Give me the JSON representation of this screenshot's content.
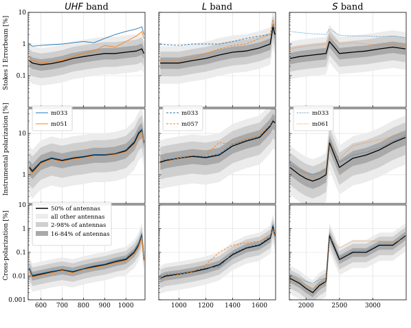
{
  "chart_data": {
    "type": "line",
    "log_y": true,
    "grid": true,
    "columns": [
      {
        "band_name": "UHF",
        "band_suffix": "band",
        "xlim": [
          540,
          1090
        ],
        "xticks": [
          600,
          700,
          800,
          900,
          1000
        ],
        "xtick_labels": [
          "600",
          "700",
          "800",
          "900",
          "1000"
        ]
      },
      {
        "band_name": "L",
        "band_suffix": "band",
        "xlim": [
          850,
          1720
        ],
        "xticks": [
          1000,
          1200,
          1400,
          1600
        ],
        "xtick_labels": [
          "1000",
          "1200",
          "1400",
          "1600"
        ]
      },
      {
        "band_name": "S",
        "band_suffix": "band",
        "xlim": [
          1750,
          3500
        ],
        "xticks": [
          2000,
          2500,
          3000
        ],
        "xtick_labels": [
          "2000",
          "2500",
          "3000"
        ]
      }
    ],
    "rows": [
      {
        "ylabel": "Stokes I Errorbeam [%]",
        "ylim": [
          0.01,
          10
        ],
        "yticks": [
          0.1,
          1,
          10
        ],
        "ytick_labels": [
          "0.1",
          "1",
          "10"
        ]
      },
      {
        "ylabel": "Instrumental polarization [%]",
        "ylim": [
          0.2,
          40
        ],
        "yticks": [
          1,
          10
        ],
        "ytick_labels": [
          "1",
          "10"
        ]
      },
      {
        "ylabel": "Cross-polarization [%]",
        "ylim": [
          0.001,
          10
        ],
        "yticks": [
          0.001,
          0.01,
          0.1,
          1,
          10
        ],
        "ytick_labels": [
          "0.001",
          "0.01",
          "0.1",
          "1",
          "10"
        ]
      }
    ],
    "legends": {
      "uhf": [
        {
          "name": "m033",
          "color": "#1f77b4",
          "style": "solid"
        },
        {
          "name": "m051",
          "color": "#ff7f0e",
          "style": "solid"
        }
      ],
      "l": [
        {
          "name": "m033",
          "color": "#1f77b4",
          "style": "dashed"
        },
        {
          "name": "m057",
          "color": "#ff7f0e",
          "style": "dashed"
        }
      ],
      "s": [
        {
          "name": "m033",
          "color": "#1f77b4",
          "style": "dotted"
        },
        {
          "name": "m061",
          "color": "#ff7f0e",
          "style": "dotted"
        }
      ],
      "envelope": [
        {
          "name": "50% of antennas",
          "kind": "line",
          "color": "#000000"
        },
        {
          "name": "all other antennas",
          "kind": "band",
          "color": "#ececec"
        },
        {
          "name": "2-98% of antennas",
          "kind": "band",
          "color": "#cfcfcf"
        },
        {
          "name": "16-84% of antennas",
          "kind": "band",
          "color": "#a9a9a9"
        }
      ]
    },
    "colors": {
      "antenna_a": "#1f77b4",
      "antenna_b": "#ff7f0e",
      "median": "#000000",
      "band_all": "#ececec",
      "band_2_98": "#cfcfcf",
      "band_16_84": "#a9a9a9"
    },
    "series": [
      {
        "row": 0,
        "col": 0,
        "name": "median",
        "x": [
          545,
          560,
          600,
          650,
          700,
          750,
          800,
          850,
          900,
          950,
          1000,
          1050,
          1075,
          1085
        ],
        "y": [
          0.3,
          0.25,
          0.22,
          0.24,
          0.28,
          0.35,
          0.4,
          0.45,
          0.5,
          0.5,
          0.55,
          0.6,
          0.7,
          0.5
        ]
      },
      {
        "row": 0,
        "col": 0,
        "name": "m033",
        "x": [
          545,
          560,
          600,
          650,
          700,
          750,
          800,
          850,
          900,
          950,
          1000,
          1050,
          1075,
          1085
        ],
        "y": [
          1.0,
          0.85,
          0.9,
          0.95,
          1.0,
          1.1,
          1.2,
          1.1,
          1.5,
          2.0,
          2.5,
          3.0,
          3.5,
          2.0
        ]
      },
      {
        "row": 0,
        "col": 0,
        "name": "m051",
        "x": [
          545,
          560,
          600,
          650,
          700,
          750,
          800,
          850,
          900,
          950,
          1000,
          1050,
          1075,
          1085
        ],
        "y": [
          0.4,
          0.3,
          0.25,
          0.28,
          0.3,
          0.4,
          0.5,
          0.6,
          0.9,
          0.8,
          1.2,
          1.8,
          2.5,
          1.5
        ]
      },
      {
        "row": 0,
        "col": 1,
        "name": "median",
        "x": [
          860,
          900,
          1000,
          1100,
          1200,
          1300,
          1400,
          1500,
          1600,
          1680,
          1700,
          1715
        ],
        "y": [
          0.25,
          0.25,
          0.25,
          0.3,
          0.35,
          0.45,
          0.55,
          0.6,
          0.75,
          1.0,
          3.5,
          2.0
        ]
      },
      {
        "row": 0,
        "col": 1,
        "name": "m033",
        "x": [
          860,
          900,
          1000,
          1100,
          1200,
          1300,
          1400,
          1500,
          1600,
          1680,
          1700,
          1715
        ],
        "y": [
          1.0,
          0.95,
          0.9,
          1.0,
          1.0,
          1.0,
          1.2,
          1.5,
          1.8,
          2.0,
          4.0,
          3.0
        ]
      },
      {
        "row": 0,
        "col": 1,
        "name": "m057",
        "x": [
          860,
          900,
          1000,
          1100,
          1200,
          1300,
          1400,
          1500,
          1600,
          1680,
          1700,
          1715
        ],
        "y": [
          0.3,
          0.28,
          0.3,
          0.35,
          0.5,
          0.7,
          0.9,
          1.0,
          1.5,
          2.0,
          6.0,
          3.0
        ]
      },
      {
        "row": 0,
        "col": 2,
        "name": "median",
        "x": [
          1760,
          1900,
          2100,
          2300,
          2350,
          2500,
          2700,
          2900,
          3100,
          3300,
          3490
        ],
        "y": [
          0.35,
          0.4,
          0.45,
          0.5,
          1.2,
          0.5,
          0.55,
          0.6,
          0.7,
          0.8,
          0.7
        ]
      },
      {
        "row": 0,
        "col": 2,
        "name": "m033",
        "x": [
          1760,
          1900,
          2100,
          2300,
          2350,
          2500,
          2700,
          2900,
          3100,
          3300,
          3490
        ],
        "y": [
          2.5,
          2.3,
          2.1,
          2.0,
          3.0,
          1.9,
          1.8,
          1.8,
          1.7,
          1.8,
          1.6
        ]
      },
      {
        "row": 0,
        "col": 2,
        "name": "m061",
        "x": [
          1760,
          1900,
          2100,
          2300,
          2350,
          2500,
          2700,
          2900,
          3100,
          3300,
          3490
        ],
        "y": [
          0.7,
          0.8,
          0.9,
          1.0,
          2.0,
          1.0,
          1.1,
          1.0,
          0.9,
          1.0,
          0.8
        ]
      },
      {
        "row": 1,
        "col": 0,
        "name": "median",
        "x": [
          545,
          560,
          600,
          650,
          700,
          750,
          800,
          850,
          900,
          950,
          1000,
          1040,
          1060,
          1075,
          1085
        ],
        "y": [
          1.5,
          1.2,
          2.0,
          2.5,
          2.2,
          2.5,
          2.7,
          3.0,
          3.0,
          3.2,
          3.8,
          6.0,
          10,
          12,
          6
        ]
      },
      {
        "row": 1,
        "col": 0,
        "name": "m033",
        "x": [
          545,
          560,
          600,
          650,
          700,
          750,
          800,
          850,
          900,
          950,
          1000,
          1040,
          1060,
          1075,
          1085
        ],
        "y": [
          1.6,
          1.3,
          2.1,
          2.6,
          2.3,
          2.6,
          2.8,
          3.1,
          3.1,
          3.3,
          4.0,
          6.5,
          11,
          13,
          6.5
        ]
      },
      {
        "row": 1,
        "col": 0,
        "name": "m051",
        "x": [
          545,
          560,
          600,
          650,
          700,
          750,
          800,
          850,
          900,
          950,
          1000,
          1040,
          1060,
          1075,
          1085
        ],
        "y": [
          1.4,
          1.1,
          1.9,
          2.4,
          2.1,
          2.4,
          2.6,
          2.9,
          2.9,
          3.1,
          3.6,
          5.5,
          9,
          11,
          5.5
        ]
      },
      {
        "row": 1,
        "col": 1,
        "name": "median",
        "x": [
          860,
          900,
          1000,
          1100,
          1200,
          1300,
          1400,
          1500,
          1600,
          1680,
          1700,
          1715
        ],
        "y": [
          2.0,
          2.2,
          2.5,
          2.8,
          2.6,
          3.0,
          5.0,
          6.5,
          8.0,
          15,
          20,
          18
        ]
      },
      {
        "row": 1,
        "col": 1,
        "name": "m033",
        "x": [
          860,
          900,
          1000,
          1100,
          1200,
          1300,
          1400,
          1500,
          1600,
          1680,
          1700,
          1715
        ],
        "y": [
          2.1,
          2.3,
          2.6,
          2.9,
          2.7,
          3.2,
          5.5,
          7.0,
          8.5,
          16,
          21,
          19
        ]
      },
      {
        "row": 1,
        "col": 1,
        "name": "m057",
        "x": [
          860,
          900,
          1000,
          1100,
          1200,
          1300,
          1400,
          1500,
          1600,
          1680,
          1700,
          1715
        ],
        "y": [
          1.9,
          2.1,
          2.5,
          2.9,
          3.0,
          6.0,
          5.5,
          7.5,
          9.0,
          16,
          22,
          20
        ]
      },
      {
        "row": 1,
        "col": 2,
        "name": "median",
        "x": [
          1760,
          1900,
          2000,
          2100,
          2200,
          2300,
          2350,
          2500,
          2700,
          2900,
          3100,
          3300,
          3490
        ],
        "y": [
          1.5,
          1.0,
          0.8,
          0.7,
          0.8,
          1.0,
          6.0,
          1.5,
          2.5,
          3.0,
          4.0,
          6.0,
          8.0
        ]
      },
      {
        "row": 1,
        "col": 2,
        "name": "m033",
        "x": [
          1760,
          1900,
          2000,
          2100,
          2200,
          2300,
          2350,
          2500,
          2700,
          2900,
          3100,
          3300,
          3490
        ],
        "y": [
          1.8,
          1.3,
          1.1,
          1.0,
          1.1,
          1.3,
          7.0,
          2.0,
          3.0,
          3.5,
          4.5,
          6.5,
          9.0
        ]
      },
      {
        "row": 1,
        "col": 2,
        "name": "m061",
        "x": [
          1760,
          1900,
          2000,
          2100,
          2200,
          2300,
          2350,
          2500,
          2700,
          2900,
          3100,
          3300,
          3490
        ],
        "y": [
          1.7,
          1.2,
          1.0,
          0.9,
          1.0,
          1.2,
          6.5,
          2.5,
          5.0,
          6.0,
          7.0,
          8.5,
          10
        ]
      },
      {
        "row": 2,
        "col": 0,
        "name": "median",
        "x": [
          545,
          560,
          600,
          650,
          700,
          750,
          800,
          850,
          900,
          950,
          1000,
          1040,
          1060,
          1075,
          1085
        ],
        "y": [
          0.02,
          0.01,
          0.012,
          0.015,
          0.018,
          0.015,
          0.02,
          0.025,
          0.03,
          0.04,
          0.05,
          0.1,
          0.2,
          0.5,
          0.05
        ]
      },
      {
        "row": 2,
        "col": 0,
        "name": "m033",
        "x": [
          545,
          560,
          600,
          650,
          700,
          750,
          800,
          850,
          900,
          950,
          1000,
          1040,
          1060,
          1075,
          1085
        ],
        "y": [
          0.022,
          0.011,
          0.013,
          0.016,
          0.019,
          0.016,
          0.021,
          0.027,
          0.032,
          0.045,
          0.055,
          0.12,
          0.25,
          0.6,
          0.06
        ]
      },
      {
        "row": 2,
        "col": 0,
        "name": "m051",
        "x": [
          545,
          560,
          600,
          650,
          700,
          750,
          800,
          850,
          900,
          950,
          1000,
          1040,
          1060,
          1075,
          1085
        ],
        "y": [
          0.018,
          0.009,
          0.011,
          0.014,
          0.017,
          0.014,
          0.019,
          0.023,
          0.028,
          0.037,
          0.045,
          0.09,
          0.18,
          0.45,
          0.045
        ]
      },
      {
        "row": 2,
        "col": 1,
        "name": "median",
        "x": [
          860,
          900,
          1000,
          1100,
          1200,
          1300,
          1400,
          1500,
          1600,
          1680,
          1700,
          1715
        ],
        "y": [
          0.008,
          0.01,
          0.012,
          0.015,
          0.02,
          0.03,
          0.08,
          0.15,
          0.2,
          0.4,
          1.2,
          0.5
        ]
      },
      {
        "row": 2,
        "col": 1,
        "name": "m033",
        "x": [
          860,
          900,
          1000,
          1100,
          1200,
          1300,
          1400,
          1500,
          1600,
          1680,
          1700,
          1715
        ],
        "y": [
          0.008,
          0.011,
          0.013,
          0.016,
          0.022,
          0.025,
          0.09,
          0.16,
          0.22,
          0.45,
          1.5,
          0.6
        ]
      },
      {
        "row": 2,
        "col": 1,
        "name": "m057",
        "x": [
          860,
          900,
          1000,
          1100,
          1200,
          1300,
          1400,
          1500,
          1600,
          1680,
          1700,
          1715
        ],
        "y": [
          0.007,
          0.009,
          0.012,
          0.015,
          0.03,
          0.1,
          0.2,
          0.25,
          0.3,
          0.5,
          1.0,
          0.5
        ]
      },
      {
        "row": 2,
        "col": 2,
        "name": "median",
        "x": [
          1760,
          1900,
          2000,
          2100,
          2200,
          2300,
          2350,
          2500,
          2700,
          2900,
          3100,
          3300,
          3490
        ],
        "y": [
          0.008,
          0.005,
          0.003,
          0.002,
          0.004,
          0.006,
          0.5,
          0.05,
          0.1,
          0.1,
          0.2,
          0.2,
          0.5
        ]
      },
      {
        "row": 2,
        "col": 2,
        "name": "m033",
        "x": [
          1760,
          1900,
          2000,
          2100,
          2200,
          2300,
          2350,
          2500,
          2700,
          2900,
          3100,
          3300,
          3490
        ],
        "y": [
          0.012,
          0.008,
          0.006,
          0.005,
          0.007,
          0.008,
          0.6,
          0.06,
          0.11,
          0.12,
          0.22,
          0.22,
          0.5
        ]
      },
      {
        "row": 2,
        "col": 2,
        "name": "m061",
        "x": [
          1760,
          1900,
          2000,
          2100,
          2200,
          2300,
          2350,
          2500,
          2700,
          2900,
          3100,
          3300,
          3490
        ],
        "y": [
          0.01,
          0.006,
          0.004,
          0.003,
          0.005,
          0.006,
          0.4,
          0.15,
          0.3,
          0.3,
          0.3,
          0.25,
          0.4
        ]
      }
    ]
  }
}
